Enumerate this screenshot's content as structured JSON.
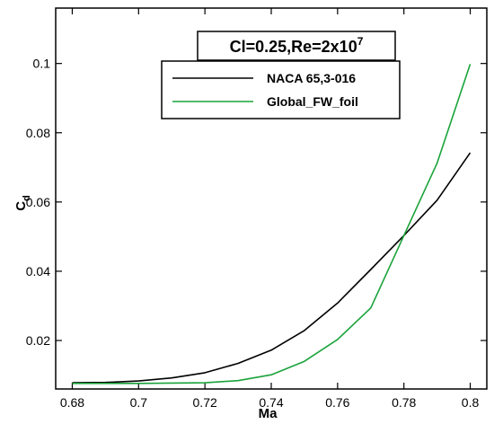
{
  "chart_data": {
    "type": "line",
    "title": "",
    "xlabel": "Ma",
    "ylabel": {
      "base": "C",
      "sub": "d"
    },
    "xlim": [
      0.675,
      0.805
    ],
    "ylim": [
      0.006,
      0.116
    ],
    "xticks": [
      0.68,
      0.7,
      0.72,
      0.74,
      0.76,
      0.78,
      0.8
    ],
    "xtick_labels": [
      "0.68",
      "0.7",
      "0.72",
      "0.74",
      "0.76",
      "0.78",
      "0.8"
    ],
    "yticks": [
      0.02,
      0.04,
      0.06,
      0.08,
      0.1
    ],
    "ytick_labels": [
      "0.02",
      "0.04",
      "0.06",
      "0.08",
      "0.1"
    ],
    "grid": false,
    "legend_position": "top-right",
    "annotation": {
      "prefix": "Cl=0.25,Re=2x10",
      "sup": "7"
    },
    "series": [
      {
        "name": "NACA 65,3-016",
        "color": "#000000",
        "x": [
          0.68,
          0.69,
          0.7,
          0.71,
          0.72,
          0.73,
          0.74,
          0.75,
          0.76,
          0.77,
          0.78,
          0.79,
          0.8
        ],
        "y": [
          0.0078,
          0.0079,
          0.0083,
          0.0092,
          0.0107,
          0.0134,
          0.0172,
          0.0229,
          0.0308,
          0.0405,
          0.0503,
          0.0605,
          0.0742
        ]
      },
      {
        "name": "Global_FW_foil",
        "color": "#1aa33a",
        "x": [
          0.68,
          0.69,
          0.7,
          0.71,
          0.72,
          0.73,
          0.74,
          0.75,
          0.76,
          0.77,
          0.78,
          0.79,
          0.8
        ],
        "y": [
          0.0076,
          0.0076,
          0.0076,
          0.0077,
          0.0078,
          0.0084,
          0.0101,
          0.014,
          0.0203,
          0.0294,
          0.0503,
          0.0712,
          0.0998
        ]
      }
    ]
  }
}
